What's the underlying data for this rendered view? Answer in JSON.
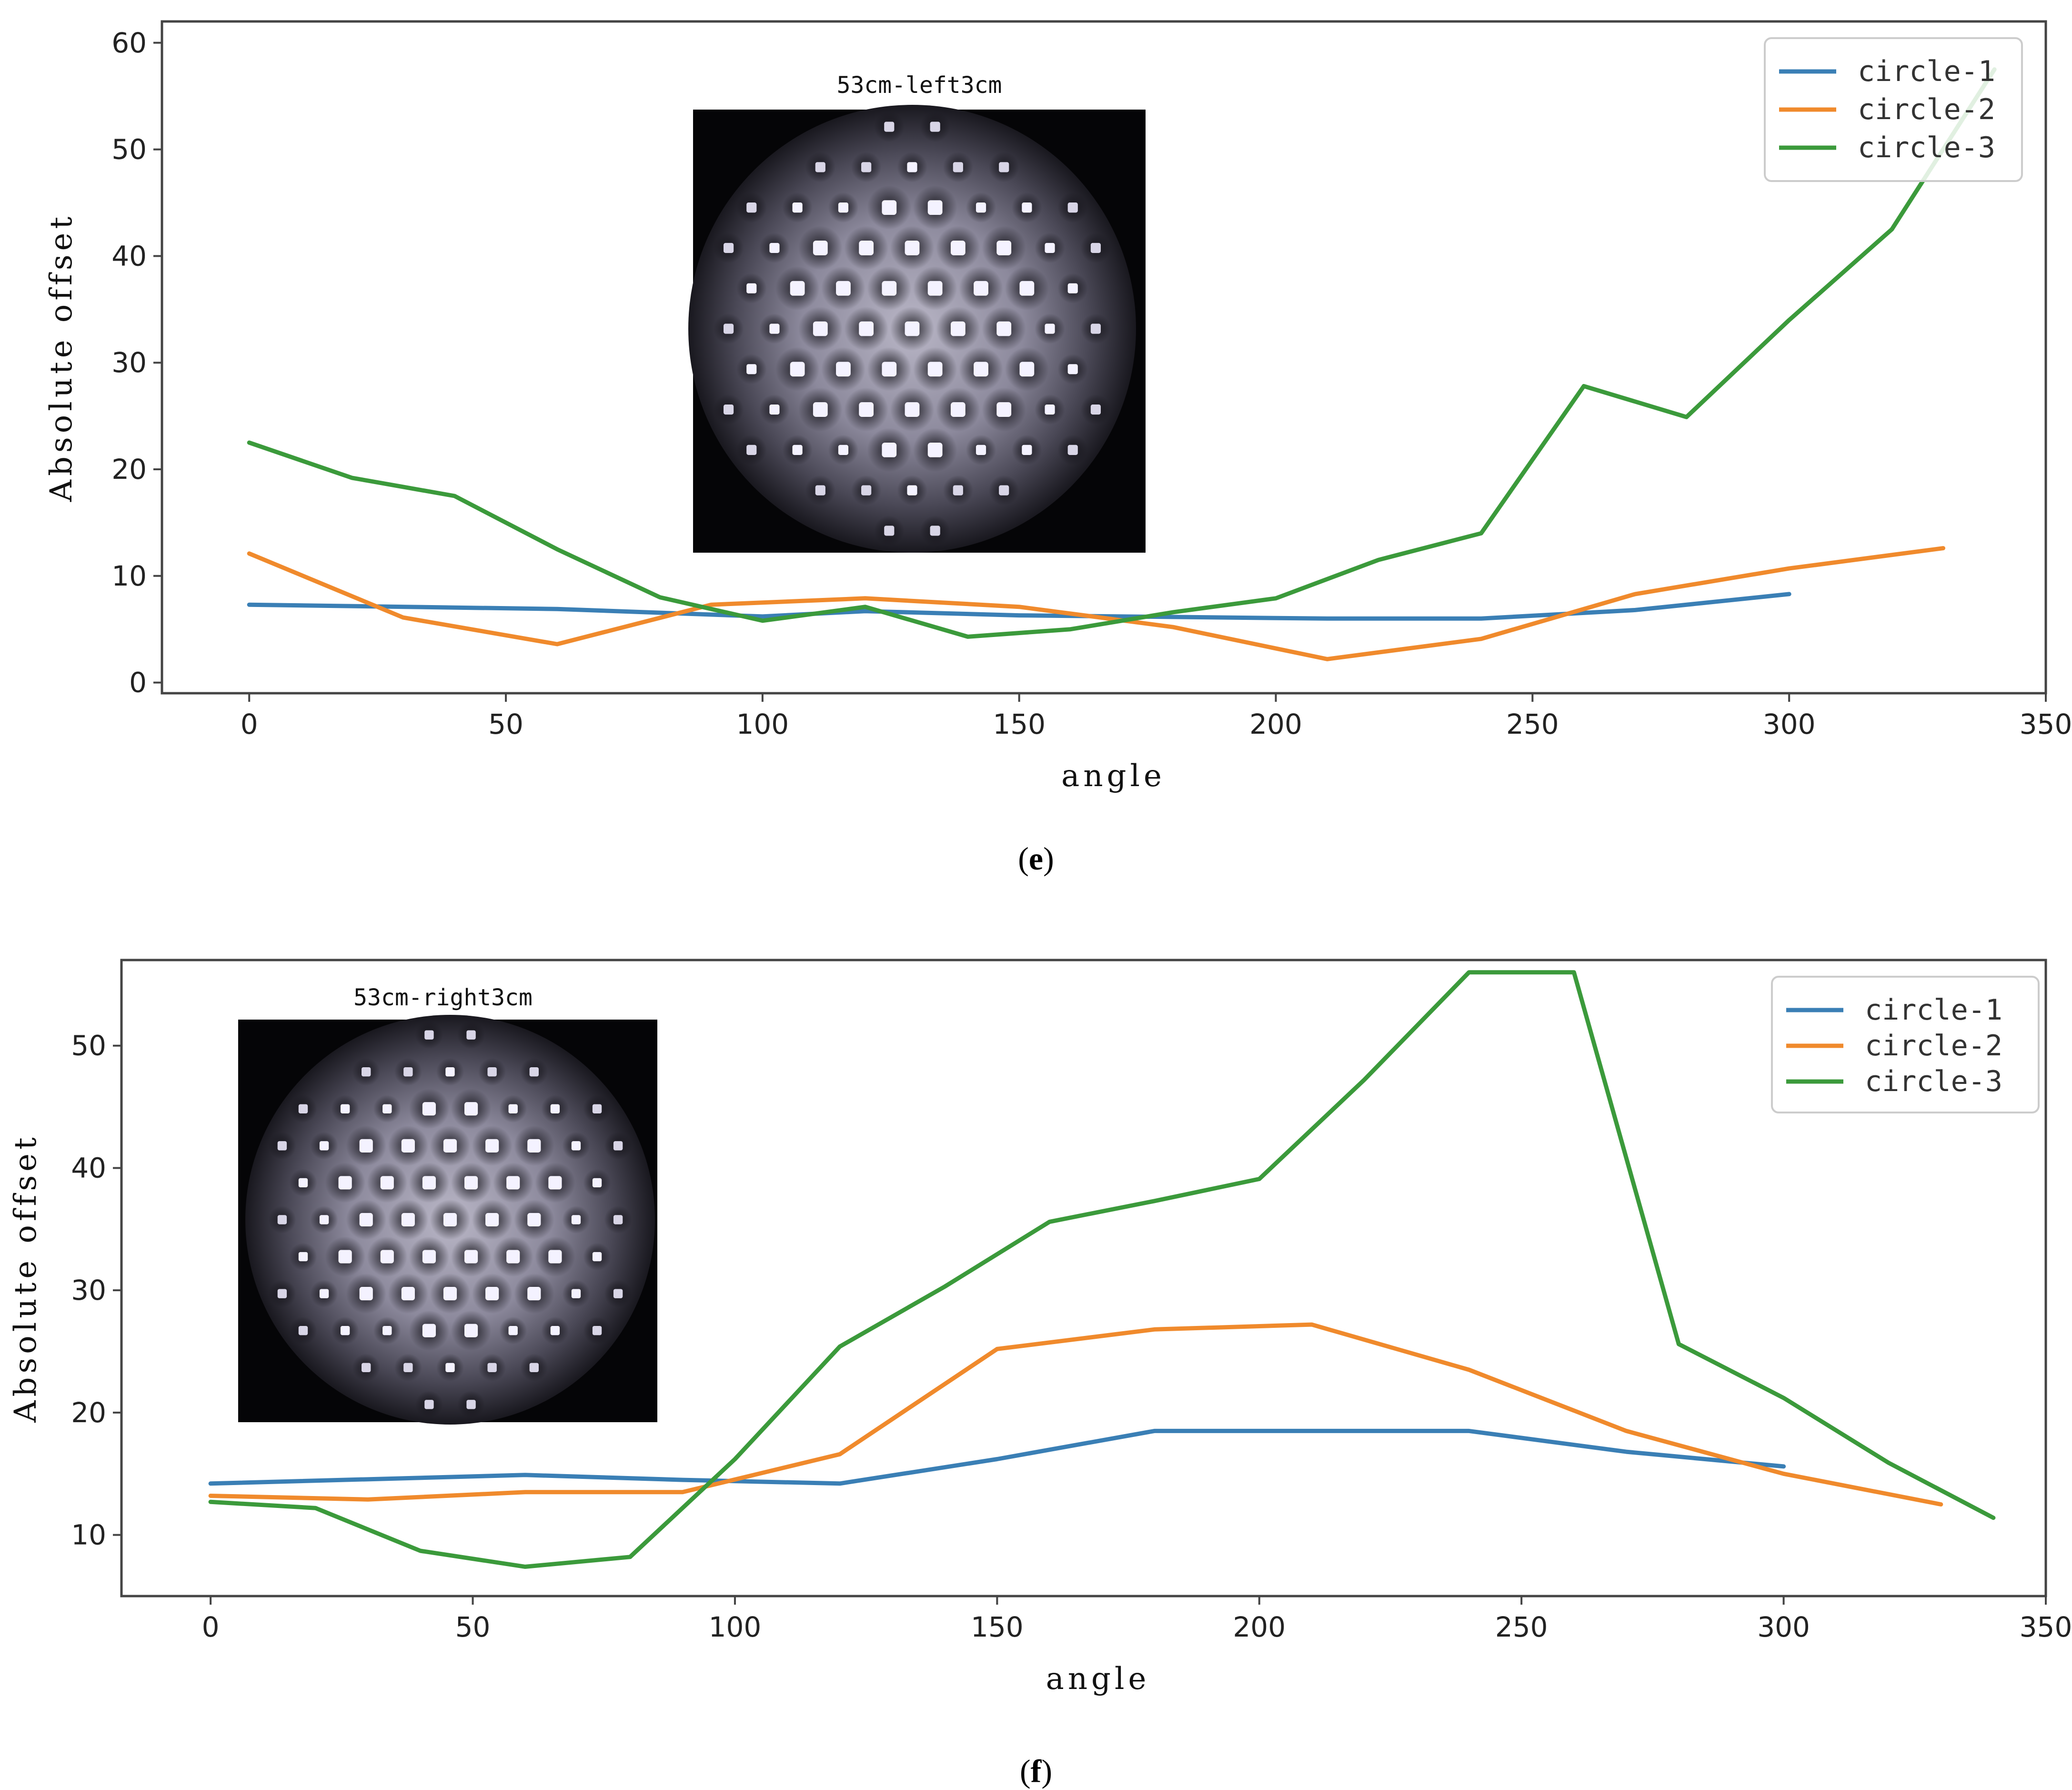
{
  "colors": {
    "circle1": "#3a7fb5",
    "circle2": "#f08a2c",
    "circle3": "#3b9a3b",
    "frame": "#444444"
  },
  "chart_data": [
    {
      "type": "line",
      "panel": "e",
      "caption_letter": "e",
      "xlabel": "angle",
      "ylabel": "Absolute offset",
      "xlim": [
        -17,
        350
      ],
      "ylim": [
        -1,
        62
      ],
      "xticks": [
        "0",
        "50",
        "100",
        "150",
        "200",
        "250",
        "300",
        "350"
      ],
      "yticks": [
        "0",
        "10",
        "20",
        "30",
        "40",
        "50",
        "60"
      ],
      "inset_title": "53cm-left3cm",
      "legend": {
        "position": "top-right",
        "entries": [
          "circle-1",
          "circle-2",
          "circle-3"
        ]
      },
      "series": [
        {
          "name": "circle-1",
          "x": [
            0,
            60,
            100,
            120,
            150,
            210,
            240,
            270,
            300
          ],
          "y": [
            7.3,
            6.9,
            6.2,
            6.7,
            6.3,
            6.0,
            6.0,
            6.8,
            8.3
          ]
        },
        {
          "name": "circle-2",
          "x": [
            0,
            30,
            60,
            90,
            120,
            150,
            180,
            210,
            240,
            270,
            300,
            330
          ],
          "y": [
            12.1,
            6.1,
            3.6,
            7.3,
            7.9,
            7.1,
            5.2,
            2.2,
            4.1,
            8.3,
            10.7,
            12.6
          ]
        },
        {
          "name": "circle-3",
          "x": [
            0,
            20,
            40,
            60,
            80,
            100,
            120,
            140,
            160,
            180,
            200,
            220,
            240,
            260,
            280,
            300,
            320,
            340
          ],
          "y": [
            22.5,
            19.2,
            17.5,
            12.5,
            8.0,
            5.8,
            7.1,
            4.3,
            5.0,
            6.6,
            7.9,
            11.5,
            14.0,
            27.8,
            24.9,
            34.0,
            42.5,
            57.5
          ]
        }
      ]
    },
    {
      "type": "line",
      "panel": "f",
      "caption_letter": "f",
      "xlabel": "angle",
      "ylabel": "Absolute offset",
      "xlim": [
        -17,
        350
      ],
      "ylim": [
        5,
        57
      ],
      "xticks": [
        "0",
        "50",
        "100",
        "150",
        "200",
        "250",
        "300",
        "350"
      ],
      "yticks": [
        "10",
        "20",
        "30",
        "40",
        "50"
      ],
      "inset_title": "53cm-right3cm",
      "legend": {
        "position": "top-right",
        "entries": [
          "circle-1",
          "circle-2",
          "circle-3"
        ]
      },
      "series": [
        {
          "name": "circle-1",
          "x": [
            0,
            60,
            90,
            120,
            150,
            180,
            210,
            240,
            270,
            300
          ],
          "y": [
            14.2,
            14.9,
            14.5,
            14.2,
            16.2,
            18.5,
            18.5,
            18.5,
            16.8,
            15.6
          ]
        },
        {
          "name": "circle-2",
          "x": [
            0,
            30,
            60,
            90,
            120,
            150,
            180,
            210,
            240,
            270,
            300,
            330
          ],
          "y": [
            13.2,
            12.9,
            13.5,
            13.5,
            16.6,
            25.2,
            26.8,
            27.2,
            23.5,
            18.5,
            15.0,
            12.5
          ]
        },
        {
          "name": "circle-3",
          "x": [
            0,
            20,
            40,
            60,
            80,
            100,
            120,
            140,
            160,
            180,
            200,
            220,
            240,
            260,
            280,
            300,
            320,
            340
          ],
          "y": [
            12.7,
            12.2,
            8.7,
            7.4,
            8.2,
            16.2,
            25.4,
            30.3,
            35.6,
            37.3,
            39.1,
            47.2,
            56.0,
            56.0,
            25.6,
            21.2,
            15.9,
            11.4
          ]
        }
      ]
    }
  ]
}
